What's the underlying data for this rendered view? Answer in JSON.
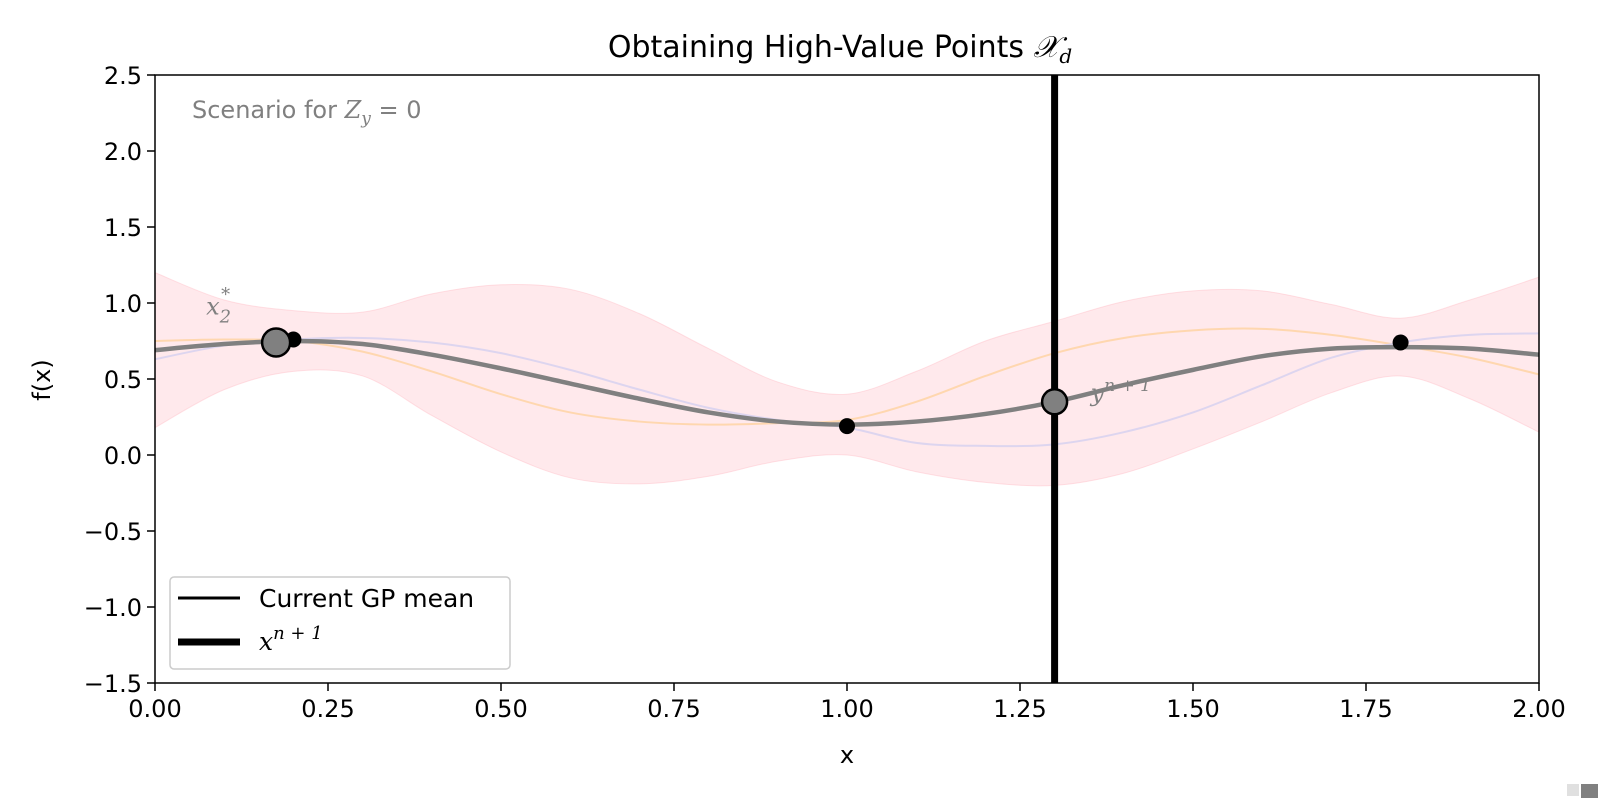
{
  "chart_data": {
    "type": "line",
    "title": "Obtaining High-Value Points",
    "title_symbol": "𝒳",
    "title_symbol_sub": "d",
    "xlabel": "x",
    "ylabel": "f(x)",
    "xlim": [
      0,
      2
    ],
    "ylim": [
      -1.5,
      2.5
    ],
    "x_ticks": [
      0,
      0.25,
      0.5,
      0.75,
      1.0,
      1.25,
      1.5,
      1.75,
      2.0
    ],
    "x_tick_labels": [
      "0.00",
      "0.25",
      "0.50",
      "0.75",
      "1.00",
      "1.25",
      "1.50",
      "1.75",
      "2.00"
    ],
    "y_ticks": [
      -1.5,
      -1.0,
      -0.5,
      0.0,
      0.5,
      1.0,
      1.5,
      2.0,
      2.5
    ],
    "y_tick_labels": [
      "−1.5",
      "−1.0",
      "−0.5",
      "0.0",
      "0.5",
      "1.0",
      "1.5",
      "2.0",
      "2.5"
    ],
    "grid": false,
    "legend_position": "lower-left",
    "legend": [
      {
        "label": "Current GP mean",
        "style": "thin-line"
      },
      {
        "label_base": "x",
        "label_sup": "n + 1",
        "style": "thick-line"
      }
    ],
    "scenario_annotation": {
      "text": "Scenario for ",
      "symbol": "Z",
      "sub": "y",
      "rest": " = 0"
    },
    "observations": {
      "x": [
        0.2,
        1.0,
        1.8
      ],
      "y": [
        0.76,
        0.19,
        0.74
      ],
      "color": "#000000"
    },
    "gp_mean": {
      "x": [
        0,
        0.1,
        0.2,
        0.3,
        0.4,
        0.5,
        0.6,
        0.7,
        0.8,
        0.9,
        1.0,
        1.1,
        1.2,
        1.3,
        1.4,
        1.5,
        1.6,
        1.7,
        1.8,
        1.9,
        2.0
      ],
      "y": [
        0.69,
        0.73,
        0.75,
        0.73,
        0.66,
        0.57,
        0.47,
        0.37,
        0.28,
        0.22,
        0.2,
        0.22,
        0.27,
        0.35,
        0.46,
        0.56,
        0.65,
        0.7,
        0.71,
        0.7,
        0.66
      ],
      "color": "#808080"
    },
    "confidence_band": {
      "x": [
        0,
        0.1,
        0.2,
        0.3,
        0.4,
        0.5,
        0.6,
        0.7,
        0.8,
        0.9,
        1.0,
        1.1,
        1.2,
        1.3,
        1.4,
        1.5,
        1.6,
        1.7,
        1.8,
        1.9,
        2.0
      ],
      "upper": [
        1.2,
        1.02,
        0.95,
        0.94,
        1.06,
        1.12,
        1.09,
        0.93,
        0.7,
        0.48,
        0.4,
        0.55,
        0.75,
        0.88,
        1.01,
        1.08,
        1.08,
        0.99,
        0.9,
        1.02,
        1.17
      ],
      "lower": [
        0.18,
        0.43,
        0.55,
        0.52,
        0.26,
        0.02,
        -0.15,
        -0.19,
        -0.14,
        -0.04,
        0.0,
        -0.11,
        -0.18,
        -0.2,
        -0.12,
        0.04,
        0.22,
        0.41,
        0.52,
        0.37,
        0.15
      ],
      "color": "#ffb6c1"
    },
    "posterior_samples": [
      {
        "x": [
          0,
          0.1,
          0.2,
          0.3,
          0.4,
          0.5,
          0.6,
          0.7,
          0.8,
          0.9,
          1.0,
          1.1,
          1.2,
          1.3,
          1.4,
          1.5,
          1.6,
          1.7,
          1.8,
          1.9,
          2.0
        ],
        "y": [
          0.75,
          0.76,
          0.75,
          0.68,
          0.55,
          0.4,
          0.28,
          0.22,
          0.2,
          0.21,
          0.23,
          0.35,
          0.52,
          0.67,
          0.77,
          0.82,
          0.83,
          0.79,
          0.72,
          0.64,
          0.53
        ],
        "color": "#ffd5a8"
      },
      {
        "x": [
          0,
          0.1,
          0.2,
          0.3,
          0.4,
          0.5,
          0.6,
          0.7,
          0.8,
          0.9,
          1.0,
          1.1,
          1.2,
          1.3,
          1.4,
          1.5,
          1.6,
          1.7,
          1.8,
          1.9,
          2.0
        ],
        "y": [
          0.63,
          0.72,
          0.76,
          0.77,
          0.74,
          0.67,
          0.56,
          0.43,
          0.31,
          0.23,
          0.18,
          0.08,
          0.06,
          0.07,
          0.15,
          0.28,
          0.46,
          0.64,
          0.74,
          0.79,
          0.8
        ],
        "color": "#d9d3f0"
      }
    ],
    "x_star": {
      "x": 0.175,
      "y": 0.74,
      "label_base": "x",
      "label_sub": "2",
      "label_sup": "*",
      "color": "#808080"
    },
    "next_point": {
      "x": 1.3,
      "y": 0.35,
      "line_color": "#000000",
      "label_base": "y",
      "label_sup": "n + 1"
    }
  }
}
